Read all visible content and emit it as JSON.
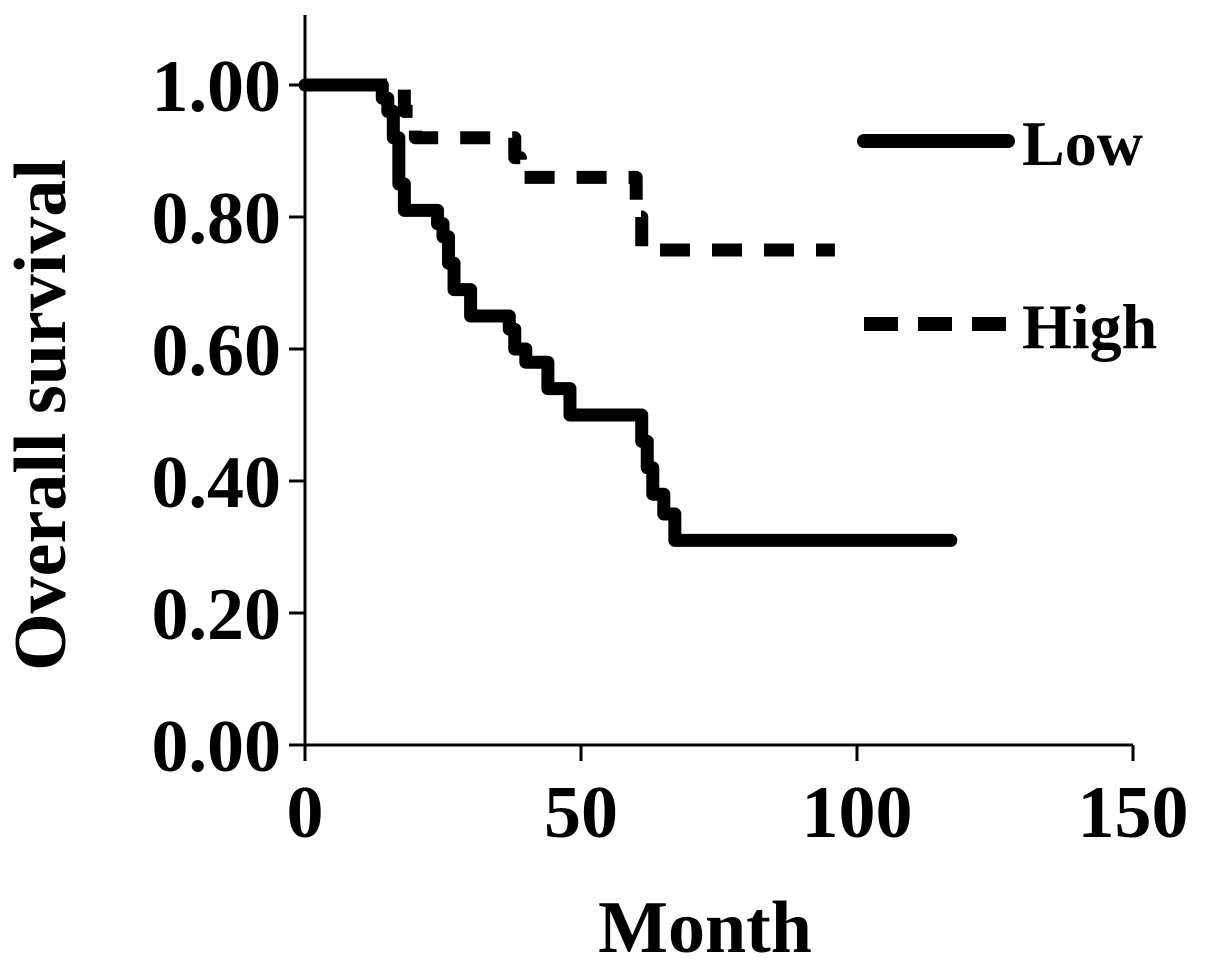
{
  "chart_data": {
    "type": "line",
    "step": true,
    "title": "",
    "xlabel": "Month",
    "ylabel": "Overall survival",
    "xlim": [
      0,
      150
    ],
    "ylim": [
      0,
      1.1
    ],
    "x_ticks": [
      0,
      50,
      100,
      150
    ],
    "x_tick_labels": [
      "0",
      "50",
      "100",
      "150"
    ],
    "y_ticks": [
      0,
      0.2,
      0.4,
      0.6,
      0.8,
      1.0
    ],
    "y_tick_labels": [
      "0.00",
      "0.20",
      "0.40",
      "0.60",
      "0.80",
      "1.00"
    ],
    "grid": false,
    "legend_position": "right",
    "series": [
      {
        "name": "Low",
        "line_style": "solid",
        "color": "#000000",
        "x": [
          0,
          14,
          15,
          16,
          17,
          18,
          20,
          24,
          25,
          26,
          27,
          28,
          30,
          37,
          38,
          40,
          44,
          45,
          48,
          61,
          62,
          63,
          65,
          67,
          117
        ],
        "y": [
          1.0,
          0.98,
          0.96,
          0.92,
          0.85,
          0.81,
          0.81,
          0.79,
          0.77,
          0.73,
          0.69,
          0.69,
          0.65,
          0.63,
          0.6,
          0.58,
          0.54,
          0.54,
          0.5,
          0.46,
          0.42,
          0.38,
          0.35,
          0.31,
          0.31
        ]
      },
      {
        "name": "High",
        "line_style": "dashed",
        "color": "#000000",
        "x": [
          0,
          18,
          20,
          38,
          39,
          60,
          61,
          96
        ],
        "y": [
          1.0,
          0.96,
          0.92,
          0.89,
          0.86,
          0.8,
          0.75,
          0.75
        ]
      }
    ]
  }
}
